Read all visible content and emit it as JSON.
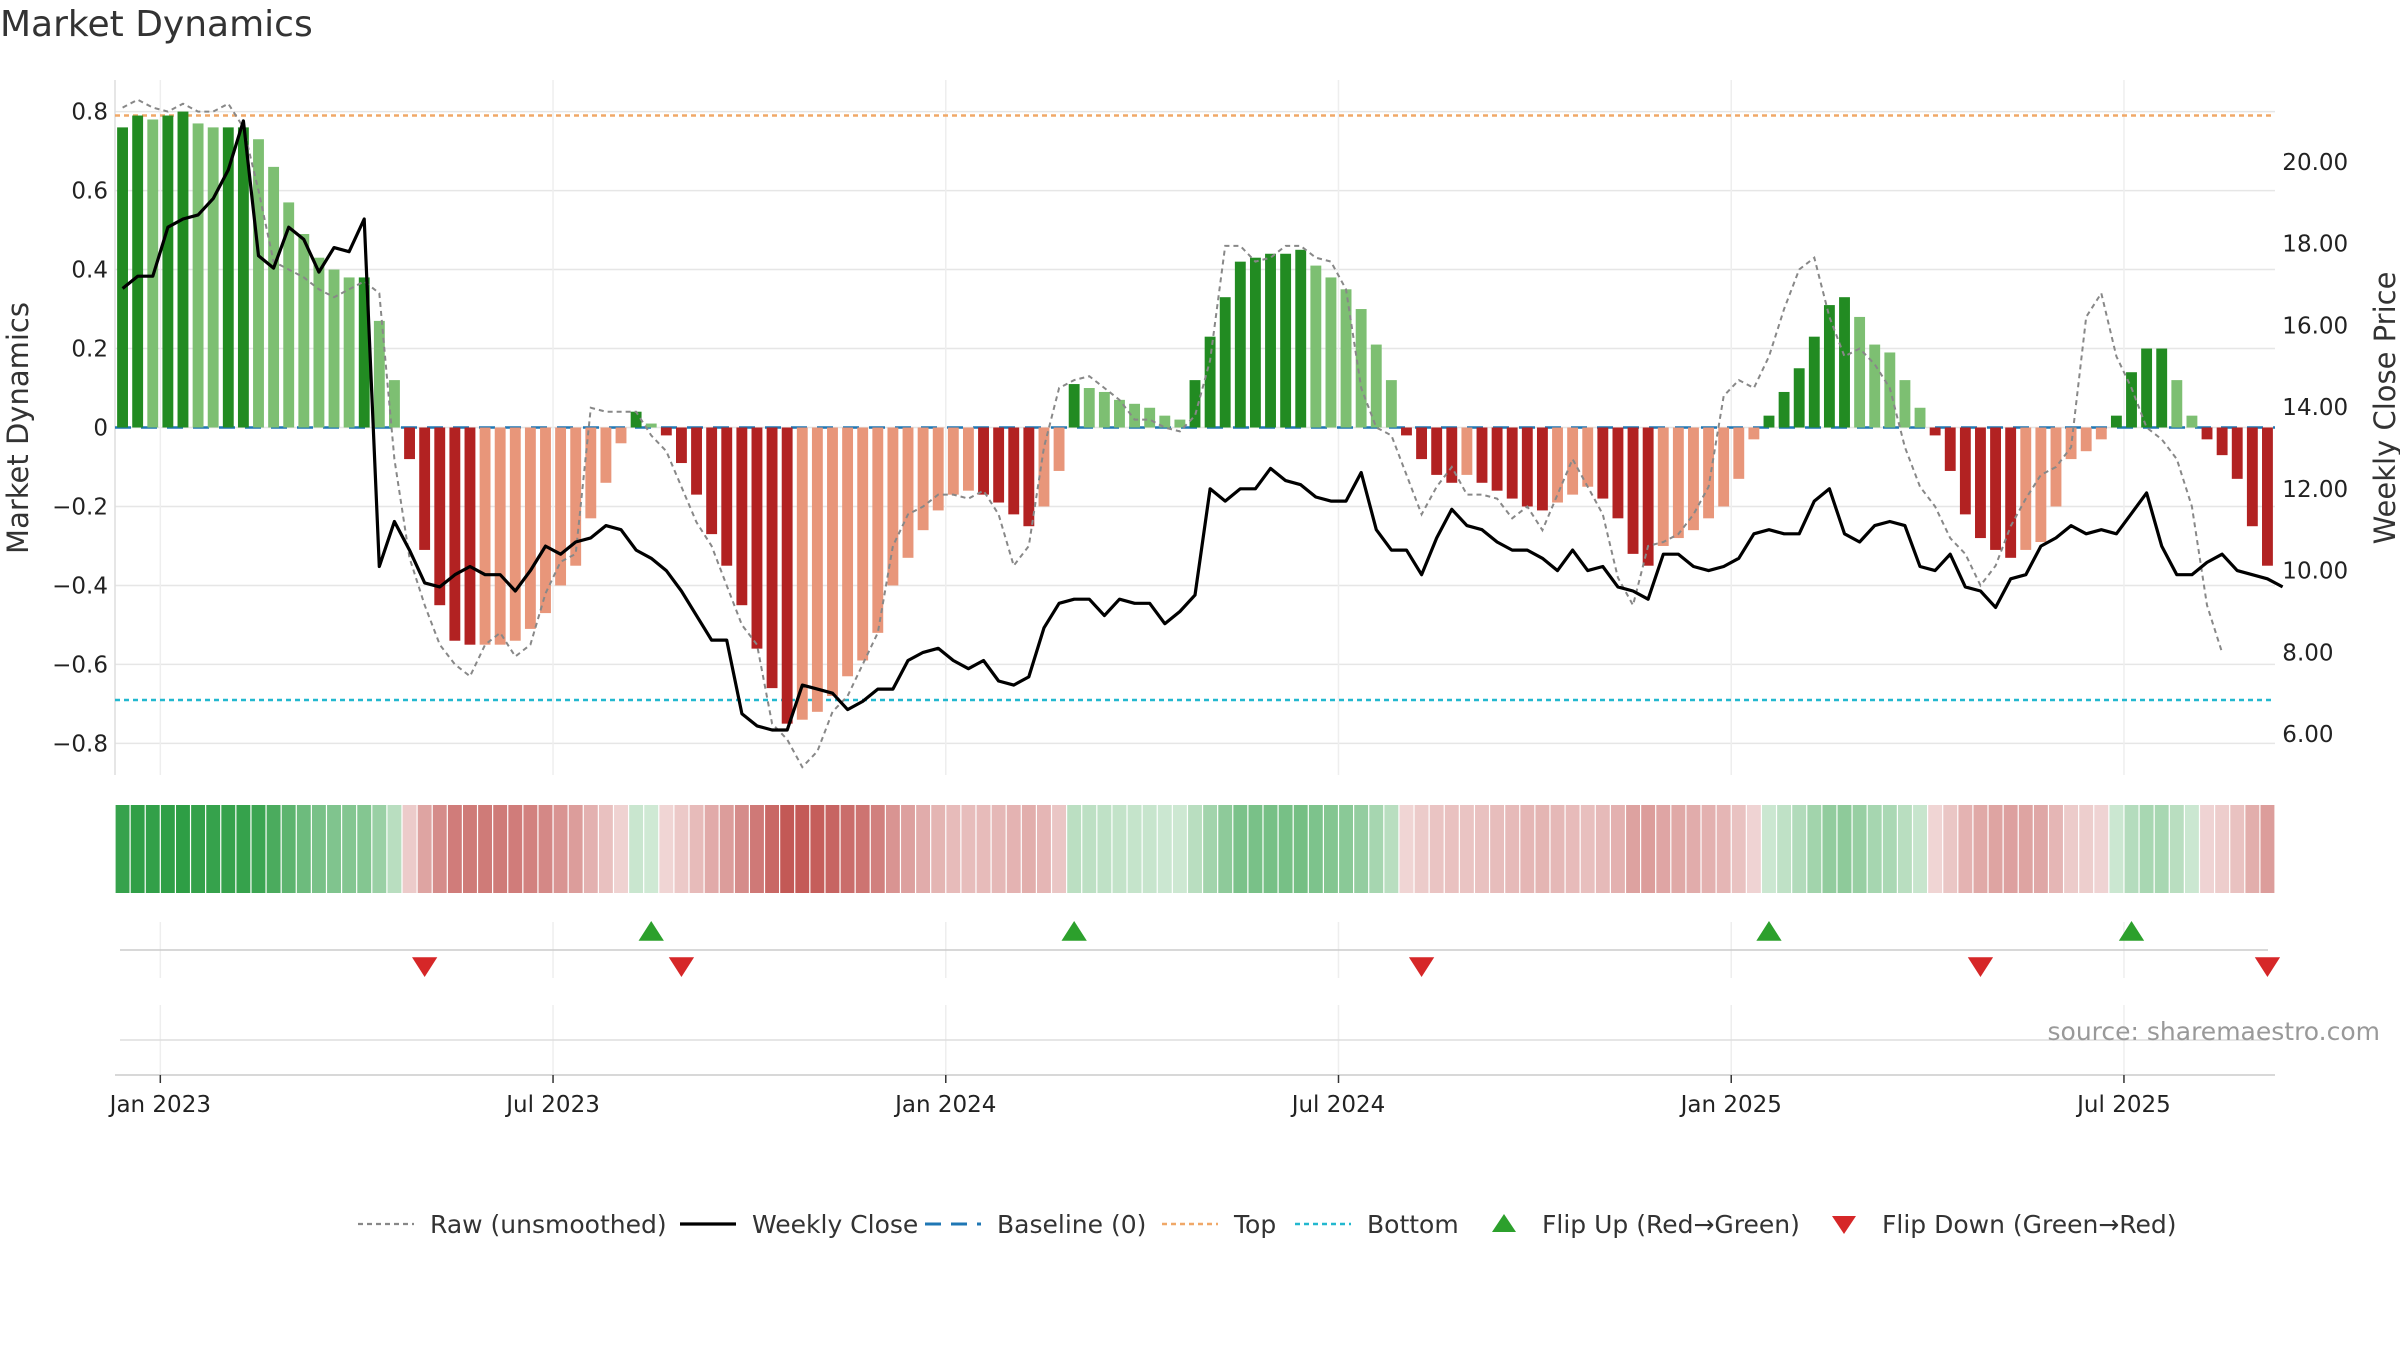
{
  "title": "Market Dynamics",
  "source": "source: sharemaestro.com",
  "chart_data": {
    "type": "bar",
    "title": "Market Dynamics",
    "ylabel_left": "Market Dynamics",
    "ylabel_right": "Weekly Close Price",
    "ylim_left": [
      -0.88,
      0.88
    ],
    "ylim_right": [
      5.0,
      22.0
    ],
    "yticks_left": [
      "0.8",
      "0.6",
      "0.4",
      "0.2",
      "0",
      "−0.2",
      "−0.4",
      "−0.6",
      "−0.8"
    ],
    "yticks_left_values": [
      0.8,
      0.6,
      0.4,
      0.2,
      0,
      -0.2,
      -0.4,
      -0.6,
      -0.8
    ],
    "yticks_right": [
      "20.00",
      "18.00",
      "16.00",
      "14.00",
      "12.00",
      "10.00",
      "8.00",
      "6.00"
    ],
    "yticks_right_values": [
      20,
      18,
      16,
      14,
      12,
      10,
      8,
      6
    ],
    "xticks": [
      {
        "label": "Jan 2023",
        "week": 3
      },
      {
        "label": "Jul 2023",
        "week": 29
      },
      {
        "label": "Jan 2024",
        "week": 55
      },
      {
        "label": "Jul 2024",
        "week": 81
      },
      {
        "label": "Jan 2025",
        "week": 107
      },
      {
        "label": "Jul 2025",
        "week": 133
      }
    ],
    "top_level": 0.79,
    "bottom_level": -0.69,
    "baseline": 0,
    "colors": {
      "strong_green": "#228b22",
      "light_green": "#7dbf72",
      "strong_red": "#b22222",
      "light_red": "#e8967a",
      "close_line": "#000000",
      "raw_line": "#888888",
      "baseline": "#1f77b4",
      "top": "#f0a868",
      "bottom": "#22b8cf",
      "flip_up": "#2ca02c",
      "flip_down": "#d62728"
    },
    "series": [
      {
        "name": "Market Dynamics (bars)",
        "values": [
          0.76,
          0.79,
          0.78,
          0.79,
          0.8,
          0.77,
          0.76,
          0.76,
          0.76,
          0.73,
          0.66,
          0.57,
          0.49,
          0.43,
          0.4,
          0.38,
          0.38,
          0.27,
          0.12,
          -0.08,
          -0.31,
          -0.45,
          -0.54,
          -0.55,
          -0.55,
          -0.55,
          -0.54,
          -0.51,
          -0.47,
          -0.4,
          -0.35,
          -0.23,
          -0.14,
          -0.04,
          0.04,
          0.01,
          -0.02,
          -0.09,
          -0.17,
          -0.27,
          -0.35,
          -0.45,
          -0.56,
          -0.66,
          -0.75,
          -0.74,
          -0.72,
          -0.68,
          -0.63,
          -0.59,
          -0.52,
          -0.4,
          -0.33,
          -0.26,
          -0.21,
          -0.17,
          -0.16,
          -0.17,
          -0.19,
          -0.22,
          -0.25,
          -0.2,
          -0.11,
          0.11,
          0.1,
          0.09,
          0.07,
          0.06,
          0.05,
          0.03,
          0.02,
          0.12,
          0.23,
          0.33,
          0.42,
          0.43,
          0.44,
          0.44,
          0.45,
          0.41,
          0.38,
          0.35,
          0.3,
          0.21,
          0.12,
          -0.02,
          -0.08,
          -0.12,
          -0.14,
          -0.12,
          -0.14,
          -0.16,
          -0.18,
          -0.2,
          -0.21,
          -0.19,
          -0.17,
          -0.15,
          -0.18,
          -0.23,
          -0.32,
          -0.35,
          -0.3,
          -0.28,
          -0.26,
          -0.23,
          -0.2,
          -0.13,
          -0.03,
          0.03,
          0.09,
          0.15,
          0.23,
          0.31,
          0.33,
          0.28,
          0.21,
          0.19,
          0.12,
          0.05,
          -0.02,
          -0.11,
          -0.22,
          -0.28,
          -0.31,
          -0.33,
          -0.31,
          -0.29,
          -0.2,
          -0.08,
          -0.06,
          -0.03,
          0.03,
          0.14,
          0.2,
          0.2,
          0.12,
          0.03,
          -0.03,
          -0.07,
          -0.13,
          -0.25,
          -0.35
        ]
      },
      {
        "name": "Raw (unsmoothed)",
        "values": [
          0.81,
          0.83,
          0.81,
          0.8,
          0.82,
          0.8,
          0.8,
          0.82,
          0.76,
          0.6,
          0.42,
          0.4,
          0.38,
          0.35,
          0.33,
          0.35,
          0.37,
          0.34,
          -0.08,
          -0.33,
          -0.45,
          -0.55,
          -0.6,
          -0.63,
          -0.55,
          -0.52,
          -0.58,
          -0.55,
          -0.42,
          -0.34,
          -0.32,
          0.05,
          0.04,
          0.04,
          0.04,
          -0.02,
          -0.06,
          -0.15,
          -0.24,
          -0.3,
          -0.4,
          -0.5,
          -0.55,
          -0.75,
          -0.79,
          -0.86,
          -0.82,
          -0.72,
          -0.68,
          -0.6,
          -0.52,
          -0.3,
          -0.22,
          -0.2,
          -0.17,
          -0.17,
          -0.18,
          -0.16,
          -0.22,
          -0.35,
          -0.3,
          -0.05,
          0.1,
          0.12,
          0.13,
          0.1,
          0.07,
          0.02,
          0.02,
          0.0,
          -0.01,
          0.03,
          0.17,
          0.46,
          0.46,
          0.42,
          0.43,
          0.46,
          0.46,
          0.43,
          0.42,
          0.35,
          0.1,
          0.0,
          -0.02,
          -0.12,
          -0.22,
          -0.15,
          -0.1,
          -0.17,
          -0.17,
          -0.18,
          -0.23,
          -0.2,
          -0.26,
          -0.17,
          -0.08,
          -0.15,
          -0.22,
          -0.38,
          -0.45,
          -0.3,
          -0.29,
          -0.27,
          -0.22,
          -0.15,
          0.08,
          0.12,
          0.1,
          0.18,
          0.3,
          0.4,
          0.43,
          0.28,
          0.18,
          0.2,
          0.16,
          0.1,
          -0.05,
          -0.15,
          -0.2,
          -0.28,
          -0.32,
          -0.4,
          -0.35,
          -0.25,
          -0.18,
          -0.12,
          -0.1,
          -0.05,
          0.28,
          0.34,
          0.18,
          0.1,
          0.0,
          -0.03,
          -0.08,
          -0.2,
          -0.45,
          -0.57
        ]
      },
      {
        "name": "Weekly Close",
        "values": [
          16.9,
          17.2,
          17.2,
          18.4,
          18.6,
          18.7,
          19.1,
          19.8,
          21.0,
          17.7,
          17.4,
          18.4,
          18.1,
          17.3,
          17.9,
          17.8,
          18.6,
          10.1,
          11.2,
          10.5,
          9.7,
          9.6,
          9.9,
          10.1,
          9.9,
          9.9,
          9.5,
          10.0,
          10.6,
          10.4,
          10.7,
          10.8,
          11.1,
          11.0,
          10.5,
          10.3,
          10.0,
          9.5,
          8.9,
          8.3,
          8.3,
          6.5,
          6.2,
          6.1,
          6.1,
          7.2,
          7.1,
          7.0,
          6.6,
          6.8,
          7.1,
          7.1,
          7.8,
          8.0,
          8.1,
          7.8,
          7.6,
          7.8,
          7.3,
          7.2,
          7.4,
          8.6,
          9.2,
          9.3,
          9.3,
          8.9,
          9.3,
          9.2,
          9.2,
          8.7,
          9.0,
          9.4,
          12.0,
          11.7,
          12.0,
          12.0,
          12.5,
          12.2,
          12.1,
          11.8,
          11.7,
          11.7,
          12.4,
          11.0,
          10.5,
          10.5,
          9.9,
          10.8,
          11.5,
          11.1,
          11.0,
          10.7,
          10.5,
          10.5,
          10.3,
          10.0,
          10.5,
          10.0,
          10.1,
          9.6,
          9.5,
          9.3,
          10.4,
          10.4,
          10.1,
          10.0,
          10.1,
          10.3,
          10.9,
          11.0,
          10.9,
          10.9,
          11.7,
          12.0,
          10.9,
          10.7,
          11.1,
          11.2,
          11.1,
          10.1,
          10.0,
          10.4,
          9.6,
          9.5,
          9.1,
          9.8,
          9.9,
          10.6,
          10.8,
          11.1,
          10.9,
          11.0,
          10.9,
          11.4,
          11.9,
          10.6,
          9.9,
          9.9,
          10.2,
          10.4,
          10.0,
          9.9,
          9.8,
          9.6
        ]
      }
    ],
    "flip_up_weeks": [
      35,
      63,
      109,
      133
    ],
    "flip_down_weeks": [
      20,
      37,
      86,
      123,
      142
    ],
    "legend": [
      {
        "label": "Raw (unsmoothed)",
        "style": "raw"
      },
      {
        "label": "Weekly Close",
        "style": "close"
      },
      {
        "label": "Baseline (0)",
        "style": "baseline"
      },
      {
        "label": "Top",
        "style": "top"
      },
      {
        "label": "Bottom",
        "style": "bottom"
      },
      {
        "label": "Flip Up (Red→Green)",
        "style": "flipup"
      },
      {
        "label": "Flip Down (Green→Red)",
        "style": "flipdown"
      }
    ],
    "grid": true
  }
}
